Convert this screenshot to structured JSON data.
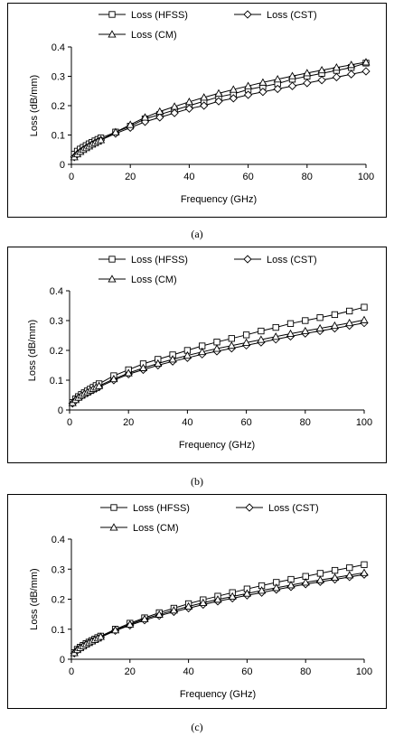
{
  "chart_data": [
    {
      "type": "line",
      "panel_id": "a",
      "caption": "(a)",
      "xlabel": "Frequency (GHz)",
      "ylabel": "Loss (dB/mm)",
      "xlim": [
        0,
        100
      ],
      "ylim": [
        0,
        0.4
      ],
      "xticks": [
        "0",
        "20",
        "40",
        "60",
        "80",
        "100"
      ],
      "yticks": [
        "0",
        "0.1",
        "0.2",
        "0.3",
        "0.4"
      ],
      "grid": false,
      "legend_placement": "top",
      "series": [
        {
          "name": "Loss (HFSS)",
          "marker": "square",
          "x": [
            1,
            2,
            3,
            4,
            5,
            6,
            7,
            8,
            9,
            10,
            15,
            20,
            25,
            30,
            35,
            40,
            45,
            50,
            55,
            60,
            65,
            70,
            75,
            80,
            85,
            90,
            95,
            100
          ],
          "y": [
            0.035,
            0.045,
            0.052,
            0.058,
            0.064,
            0.07,
            0.075,
            0.08,
            0.085,
            0.09,
            0.11,
            0.13,
            0.155,
            0.17,
            0.185,
            0.2,
            0.215,
            0.23,
            0.24,
            0.255,
            0.265,
            0.275,
            0.29,
            0.3,
            0.31,
            0.32,
            0.33,
            0.345
          ]
        },
        {
          "name": "Loss (CST)",
          "marker": "diamond",
          "x": [
            1,
            2,
            3,
            4,
            5,
            6,
            7,
            8,
            9,
            10,
            15,
            20,
            25,
            30,
            35,
            40,
            45,
            50,
            55,
            60,
            65,
            70,
            75,
            80,
            85,
            90,
            95,
            100
          ],
          "y": [
            0.025,
            0.035,
            0.043,
            0.05,
            0.056,
            0.062,
            0.068,
            0.073,
            0.078,
            0.083,
            0.105,
            0.125,
            0.145,
            0.16,
            0.175,
            0.19,
            0.2,
            0.215,
            0.225,
            0.237,
            0.247,
            0.257,
            0.267,
            0.277,
            0.287,
            0.297,
            0.307,
            0.317
          ]
        },
        {
          "name": "Loss (CM)",
          "marker": "triangle",
          "x": [
            1,
            2,
            3,
            4,
            5,
            6,
            7,
            8,
            9,
            10,
            15,
            20,
            25,
            30,
            35,
            40,
            45,
            50,
            55,
            60,
            65,
            70,
            75,
            80,
            85,
            90,
            95,
            100
          ],
          "y": [
            0.025,
            0.035,
            0.043,
            0.05,
            0.056,
            0.062,
            0.068,
            0.073,
            0.078,
            0.083,
            0.11,
            0.135,
            0.16,
            0.18,
            0.197,
            0.213,
            0.228,
            0.242,
            0.255,
            0.267,
            0.279,
            0.29,
            0.301,
            0.311,
            0.321,
            0.33,
            0.339,
            0.348
          ]
        }
      ]
    },
    {
      "type": "line",
      "panel_id": "b",
      "caption": "(b)",
      "xlabel": "Frequency (GHz)",
      "ylabel": "Loss (dB/mm)",
      "xlim": [
        0,
        100
      ],
      "ylim": [
        0,
        0.4
      ],
      "xticks": [
        "0",
        "20",
        "40",
        "60",
        "80",
        "100"
      ],
      "yticks": [
        "0",
        "0.1",
        "0.2",
        "0.3",
        "0.4"
      ],
      "grid": false,
      "legend_placement": "top",
      "series": [
        {
          "name": "Loss (HFSS)",
          "marker": "square",
          "x": [
            1,
            2,
            3,
            4,
            5,
            6,
            7,
            8,
            9,
            10,
            15,
            20,
            25,
            30,
            35,
            40,
            45,
            50,
            55,
            60,
            65,
            70,
            75,
            80,
            85,
            90,
            95,
            100
          ],
          "y": [
            0.025,
            0.037,
            0.045,
            0.052,
            0.058,
            0.064,
            0.07,
            0.076,
            0.082,
            0.088,
            0.115,
            0.135,
            0.155,
            0.17,
            0.185,
            0.2,
            0.215,
            0.228,
            0.24,
            0.252,
            0.265,
            0.277,
            0.29,
            0.3,
            0.31,
            0.32,
            0.332,
            0.345
          ]
        },
        {
          "name": "Loss (CST)",
          "marker": "diamond",
          "x": [
            1,
            2,
            3,
            4,
            5,
            6,
            7,
            8,
            9,
            10,
            15,
            20,
            25,
            30,
            35,
            40,
            45,
            50,
            55,
            60,
            65,
            70,
            75,
            80,
            85,
            90,
            95,
            100
          ],
          "y": [
            0.022,
            0.032,
            0.04,
            0.046,
            0.052,
            0.057,
            0.062,
            0.067,
            0.072,
            0.077,
            0.1,
            0.12,
            0.135,
            0.15,
            0.163,
            0.175,
            0.187,
            0.197,
            0.207,
            0.217,
            0.227,
            0.237,
            0.247,
            0.257,
            0.265,
            0.274,
            0.283,
            0.292
          ]
        },
        {
          "name": "Loss (CM)",
          "marker": "triangle",
          "x": [
            1,
            2,
            3,
            4,
            5,
            6,
            7,
            8,
            9,
            10,
            15,
            20,
            25,
            30,
            35,
            40,
            45,
            50,
            55,
            60,
            65,
            70,
            75,
            80,
            85,
            90,
            95,
            100
          ],
          "y": [
            0.024,
            0.034,
            0.042,
            0.049,
            0.055,
            0.06,
            0.066,
            0.071,
            0.076,
            0.081,
            0.104,
            0.124,
            0.141,
            0.156,
            0.17,
            0.183,
            0.195,
            0.206,
            0.216,
            0.226,
            0.236,
            0.246,
            0.256,
            0.265,
            0.274,
            0.283,
            0.292,
            0.302
          ]
        }
      ]
    },
    {
      "type": "line",
      "panel_id": "c",
      "caption": "(c)",
      "xlabel": "Frequency (GHz)",
      "ylabel": "Loss (dB/mm)",
      "xlim": [
        0,
        100
      ],
      "ylim": [
        0,
        0.4
      ],
      "xticks": [
        "0",
        "20",
        "40",
        "60",
        "80",
        "100"
      ],
      "yticks": [
        "0",
        "0.1",
        "0.2",
        "0.3",
        "0.4"
      ],
      "grid": false,
      "legend_placement": "top",
      "series": [
        {
          "name": "Loss (HFSS)",
          "marker": "square",
          "x": [
            1,
            2,
            3,
            4,
            5,
            6,
            7,
            8,
            9,
            10,
            15,
            20,
            25,
            30,
            35,
            40,
            45,
            50,
            55,
            60,
            65,
            70,
            75,
            80,
            85,
            90,
            95,
            100
          ],
          "y": [
            0.022,
            0.033,
            0.04,
            0.046,
            0.052,
            0.057,
            0.062,
            0.067,
            0.072,
            0.077,
            0.1,
            0.12,
            0.138,
            0.155,
            0.17,
            0.185,
            0.198,
            0.21,
            0.222,
            0.234,
            0.245,
            0.256,
            0.266,
            0.276,
            0.286,
            0.296,
            0.305,
            0.315
          ]
        },
        {
          "name": "Loss (CST)",
          "marker": "diamond",
          "x": [
            1,
            2,
            3,
            4,
            5,
            6,
            7,
            8,
            9,
            10,
            15,
            20,
            25,
            30,
            35,
            40,
            45,
            50,
            55,
            60,
            65,
            70,
            75,
            80,
            85,
            90,
            95,
            100
          ],
          "y": [
            0.02,
            0.03,
            0.037,
            0.043,
            0.049,
            0.054,
            0.059,
            0.064,
            0.068,
            0.073,
            0.095,
            0.113,
            0.13,
            0.145,
            0.158,
            0.17,
            0.182,
            0.193,
            0.203,
            0.213,
            0.222,
            0.232,
            0.241,
            0.25,
            0.258,
            0.266,
            0.274,
            0.282
          ]
        },
        {
          "name": "Loss (CM)",
          "marker": "triangle",
          "x": [
            1,
            2,
            3,
            4,
            5,
            6,
            7,
            8,
            9,
            10,
            15,
            20,
            25,
            30,
            35,
            40,
            45,
            50,
            55,
            60,
            65,
            70,
            75,
            80,
            85,
            90,
            95,
            100
          ],
          "y": [
            0.021,
            0.031,
            0.038,
            0.044,
            0.05,
            0.055,
            0.06,
            0.065,
            0.07,
            0.075,
            0.097,
            0.116,
            0.134,
            0.149,
            0.163,
            0.176,
            0.188,
            0.199,
            0.209,
            0.219,
            0.229,
            0.238,
            0.247,
            0.256,
            0.264,
            0.272,
            0.28,
            0.288
          ]
        }
      ]
    }
  ]
}
